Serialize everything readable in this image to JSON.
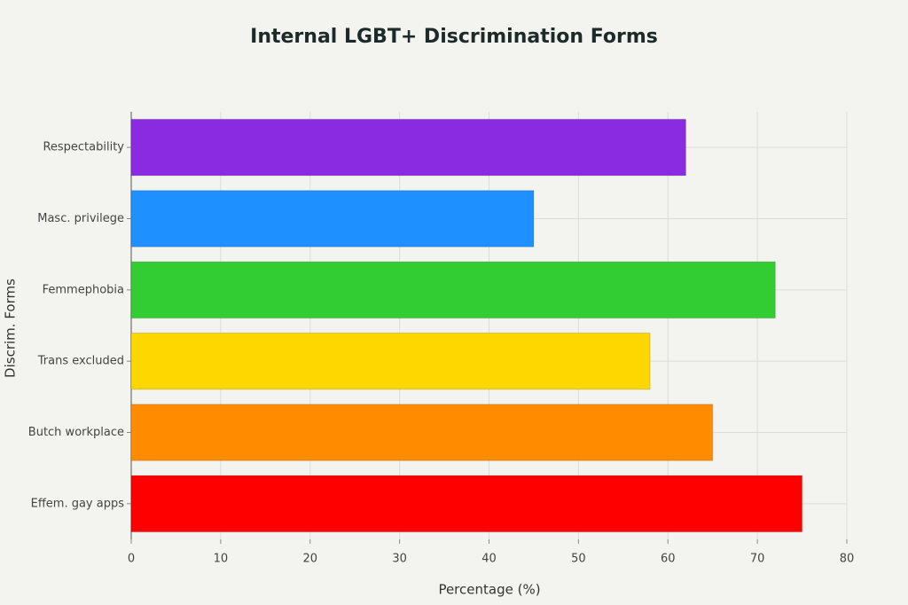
{
  "chart_data": {
    "type": "hbar",
    "title": "Internal LGBT+ Discrimination Forms",
    "x_label": "Percentage (%)",
    "y_label": "Discrim. Forms",
    "categories": [
      "Respectability",
      "Masc. privilege",
      "Femmephobia",
      "Trans excluded",
      "Butch workplace",
      "Effem. gay apps"
    ],
    "values": [
      62,
      45,
      72,
      58,
      65,
      75
    ],
    "colors": [
      "#8a2be2",
      "#1e90ff",
      "#32cd32",
      "#ffd700",
      "#ff8c00",
      "#ff0000"
    ],
    "xlim": [
      0,
      80
    ],
    "xticks": [
      0,
      10,
      20,
      30,
      40,
      50,
      60,
      70,
      80
    ],
    "grid": true
  }
}
